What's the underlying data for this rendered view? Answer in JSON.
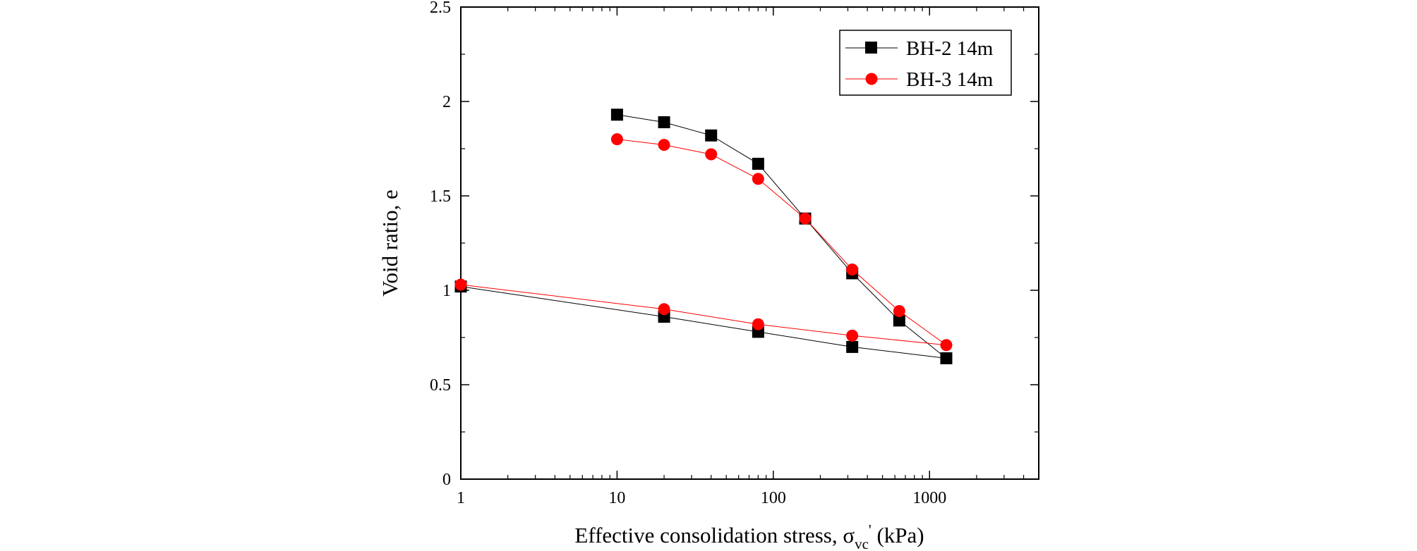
{
  "chart_data": {
    "type": "scatter",
    "x_scale": "log",
    "xlim": [
      1,
      5000
    ],
    "ylim": [
      0,
      2.5
    ],
    "x_ticks": [
      1,
      10,
      100,
      1000
    ],
    "x_tick_labels": [
      "1",
      "10",
      "100",
      "1000"
    ],
    "y_ticks": [
      0,
      0.5,
      1,
      1.5,
      2,
      2.5
    ],
    "y_tick_labels": [
      "0",
      "0.5",
      "1",
      "1.5",
      "2",
      "2.5"
    ],
    "xlabel": "Effective consolidation stress, σ",
    "xlabel_sub": "vc",
    "xlabel_prime": "'",
    "xlabel_unit": " (kPa)",
    "ylabel": "Void ratio, e",
    "grid": false,
    "legend_position": "top-right",
    "series": [
      {
        "name": "BH-2 14m",
        "color": "#000000",
        "marker": "square",
        "x": [
          10,
          20,
          40,
          80,
          160,
          320,
          640,
          1280,
          320,
          80,
          20,
          1
        ],
        "y": [
          1.93,
          1.89,
          1.82,
          1.67,
          1.38,
          1.09,
          0.84,
          0.64,
          0.7,
          0.78,
          0.86,
          1.02
        ]
      },
      {
        "name": "BH-3 14m",
        "color": "#ff0000",
        "marker": "circle",
        "x": [
          10,
          20,
          40,
          80,
          160,
          320,
          640,
          1280,
          320,
          80,
          20,
          1
        ],
        "y": [
          1.8,
          1.77,
          1.72,
          1.59,
          1.38,
          1.11,
          0.89,
          0.71,
          0.76,
          0.82,
          0.9,
          1.03
        ]
      }
    ]
  }
}
